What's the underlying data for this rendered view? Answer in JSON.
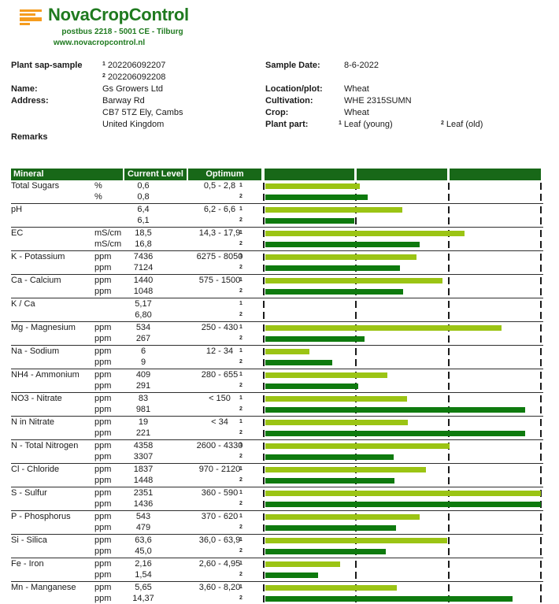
{
  "brand": {
    "name": "NovaCropControl",
    "address": "postbus 2218  -  5001 CE  -  Tilburg",
    "website": "www.novacropcontrol.nl"
  },
  "info": {
    "sample_label": "Plant sap-sample",
    "samples": [
      {
        "mark": "1",
        "id": "202206092207"
      },
      {
        "mark": "2",
        "id": "202206092208"
      }
    ],
    "name_label": "Name:",
    "name_value": "Gs Growers Ltd",
    "address_label": "Address:",
    "address_line1": "Barway Rd",
    "address_line2": "CB7 5TZ  Ely, Cambs",
    "address_line3": "United Kingdom",
    "remarks_label": "Remarks",
    "sample_date_label": "Sample Date:",
    "sample_date": "8-6-2022",
    "location_label": "Location/plot:",
    "location": "Wheat",
    "cultivation_label": "Cultivation:",
    "cultivation": "WHE 2315SUMN",
    "crop_label": "Crop:",
    "crop": "Wheat",
    "plant_part_label": "Plant part:",
    "plant_parts": [
      {
        "mark": "1",
        "value": "Leaf (young)"
      },
      {
        "mark": "2",
        "value": "Leaf (old)"
      }
    ]
  },
  "colors": {
    "bar_light": "#9BC414",
    "bar_dark": "#0E7A0E",
    "header_band": "#186818",
    "brand_green": "#1F7A1F",
    "brand_orange": "#F59C1E"
  },
  "table": {
    "headers": {
      "mineral": "Mineral",
      "current": "Current Level",
      "optimum": "Optimum"
    },
    "sample_marks": [
      "1",
      "2"
    ],
    "rows": [
      {
        "mineral": "Total Sugars",
        "unit": "%",
        "values": [
          "0,6",
          "0,8"
        ],
        "optimum": "0,5 - 2,8",
        "bars": [
          0.348,
          0.377
        ]
      },
      {
        "mineral": "pH",
        "unit": "",
        "values": [
          "6,4",
          "6,1"
        ],
        "optimum": "6,2 - 6,6",
        "bars": [
          0.5,
          0.328
        ]
      },
      {
        "mineral": "EC",
        "unit": "mS/cm",
        "values": [
          "18,5",
          "16,8"
        ],
        "optimum": "14,3 - 17,9",
        "bars": [
          0.725,
          0.565
        ]
      },
      {
        "mineral": "K - Potassium",
        "unit": "ppm",
        "values": [
          "7436",
          "7124"
        ],
        "optimum": "6275 - 8050",
        "bars": [
          0.551,
          0.493
        ]
      },
      {
        "mineral": "Ca - Calcium",
        "unit": "ppm",
        "values": [
          "1440",
          "1048"
        ],
        "optimum": "575 - 1500",
        "bars": [
          0.645,
          0.504
        ]
      },
      {
        "mineral": "K / Ca",
        "unit": "",
        "values": [
          "5,17",
          "6,80"
        ],
        "optimum": "",
        "bars": null
      },
      {
        "mineral": "Mg - Magnesium",
        "unit": "ppm",
        "values": [
          "534",
          "267"
        ],
        "optimum": "250 - 430",
        "bars": [
          0.859,
          0.365
        ]
      },
      {
        "mineral": "Na - Sodium",
        "unit": "ppm",
        "values": [
          "6",
          "9"
        ],
        "optimum": "12 - 34",
        "bars": [
          0.167,
          0.25
        ]
      },
      {
        "mineral": "NH4 - Ammonium",
        "unit": "ppm",
        "values": [
          "409",
          "291"
        ],
        "optimum": "280 - 655",
        "bars": [
          0.448,
          0.343
        ]
      },
      {
        "mineral": "NO3 - Nitrate",
        "unit": "ppm",
        "values": [
          "83",
          "981"
        ],
        "optimum": "< 150",
        "bars": [
          0.518,
          0.943
        ]
      },
      {
        "mineral": "N in Nitrate",
        "unit": "ppm",
        "values": [
          "19",
          "221"
        ],
        "optimum": "< 34",
        "bars": [
          0.52,
          0.943
        ]
      },
      {
        "mineral": "N - Total Nitrogen",
        "unit": "ppm",
        "values": [
          "4358",
          "3307"
        ],
        "optimum": "2600 - 4330",
        "bars": [
          0.672,
          0.47
        ]
      },
      {
        "mineral": "Cl - Chloride",
        "unit": "ppm",
        "values": [
          "1837",
          "1448"
        ],
        "optimum": "970 - 2120",
        "bars": [
          0.585,
          0.472
        ]
      },
      {
        "mineral": "S - Sulfur",
        "unit": "ppm",
        "values": [
          "2351",
          "1436"
        ],
        "optimum": "360 - 590",
        "bars": [
          1,
          1
        ]
      },
      {
        "mineral": "P - Phosphorus",
        "unit": "ppm",
        "values": [
          "543",
          "479"
        ],
        "optimum": "370 - 620",
        "bars": [
          0.564,
          0.479
        ]
      },
      {
        "mineral": "Si - Silica",
        "unit": "ppm",
        "values": [
          "63,6",
          "45,0"
        ],
        "optimum": "36,0 - 63,9",
        "bars": [
          0.663,
          0.441
        ]
      },
      {
        "mineral": "Fe - Iron",
        "unit": "ppm",
        "values": [
          "2,16",
          "1,54"
        ],
        "optimum": "2,60 - 4,95",
        "bars": [
          0.277,
          0.197
        ]
      },
      {
        "mineral": "Mn - Manganese",
        "unit": "ppm",
        "values": [
          "5,65",
          "14,37"
        ],
        "optimum": "3,60 - 8,20",
        "bars": [
          0.482,
          0.897
        ]
      }
    ]
  }
}
